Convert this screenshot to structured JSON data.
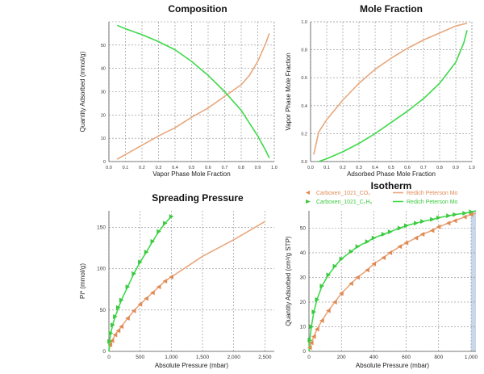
{
  "colors": {
    "orange": "#e8a77c",
    "green": "#3fd94a",
    "green_marker": "#3cc83f",
    "orange_marker": "#e08a55",
    "grid": "#8c8c8c",
    "highlight": "#c9d7ea"
  },
  "chart_data": [
    {
      "type": "line",
      "title": "Composition",
      "xlabel": "Vapor Phase Mole Fraction",
      "ylabel": "Quantity Adsorbed (mmol/g)",
      "xlim": [
        0,
        1
      ],
      "ylim": [
        0,
        60
      ],
      "x_ticks": [
        "0.0",
        "0.1",
        "0.2",
        "0.3",
        "0.4",
        "0.5",
        "0.6",
        "0.7",
        "0.8",
        "0.9",
        "1.0"
      ],
      "y_ticks": [
        "0",
        "10",
        "20",
        "30",
        "40",
        "50"
      ],
      "series": [
        {
          "color": "orange",
          "x": [
            0.05,
            0.1,
            0.2,
            0.3,
            0.4,
            0.5,
            0.6,
            0.7,
            0.8,
            0.85,
            0.9,
            0.95,
            0.97
          ],
          "y": [
            1,
            3,
            7,
            11,
            14.5,
            19,
            23,
            28,
            33,
            37,
            43,
            51,
            55
          ]
        },
        {
          "color": "green",
          "x": [
            0.05,
            0.1,
            0.2,
            0.3,
            0.4,
            0.5,
            0.6,
            0.7,
            0.8,
            0.9,
            0.95,
            0.97
          ],
          "y": [
            58.5,
            57,
            54.5,
            51.5,
            48,
            43,
            37,
            30,
            22,
            11,
            4.5,
            1.5
          ]
        }
      ]
    },
    {
      "type": "line",
      "title": "Mole Fraction",
      "xlabel": "Adsorbed Phase Mole Fraction",
      "ylabel": "Vapor Phase Mole Fraction",
      "xlim": [
        0,
        1
      ],
      "ylim": [
        0,
        1
      ],
      "x_ticks": [
        "0.0",
        "0.1",
        "0.2",
        "0.3",
        "0.4",
        "0.5",
        "0.6",
        "0.7",
        "0.8",
        "0.9",
        "1.0"
      ],
      "y_ticks": [
        "0.0",
        "0.2",
        "0.4",
        "0.6",
        "0.8",
        "1.0"
      ],
      "series": [
        {
          "color": "orange",
          "x": [
            0.02,
            0.05,
            0.1,
            0.2,
            0.3,
            0.4,
            0.5,
            0.6,
            0.7,
            0.8,
            0.9,
            0.97
          ],
          "y": [
            0.05,
            0.21,
            0.3,
            0.44,
            0.56,
            0.66,
            0.74,
            0.81,
            0.87,
            0.92,
            0.97,
            0.99
          ]
        },
        {
          "color": "green",
          "x": [
            0.05,
            0.1,
            0.2,
            0.3,
            0.4,
            0.5,
            0.6,
            0.7,
            0.8,
            0.9,
            0.95,
            0.97
          ],
          "y": [
            0.0,
            0.02,
            0.07,
            0.13,
            0.2,
            0.28,
            0.36,
            0.45,
            0.56,
            0.71,
            0.85,
            0.94
          ]
        }
      ]
    },
    {
      "type": "line",
      "title": "Spreading Pressure",
      "xlabel": "Absolute Pressure (mbar)",
      "ylabel": "Pi* (mmol/g)",
      "xlim": [
        0,
        2650
      ],
      "ylim": [
        0,
        170
      ],
      "x_ticks": [
        0,
        500,
        1000,
        1500,
        2000,
        2500
      ],
      "x_tick_labels": [
        "0",
        "500",
        "1,000",
        "1,500",
        "2,000",
        "2,500"
      ],
      "y_ticks": [
        0,
        50,
        100,
        150
      ],
      "series": [
        {
          "color": "orange",
          "x": [
            0,
            20,
            50,
            100,
            200,
            300,
            400,
            500,
            600,
            700,
            800,
            900,
            1000,
            1200,
            1500,
            2000,
            2500
          ],
          "y": [
            0,
            8,
            13,
            20,
            30,
            40,
            49,
            57,
            64,
            71,
            78,
            85,
            90,
            100,
            115,
            135,
            157
          ],
          "markers_x": [
            20,
            50,
            100,
            150,
            200,
            300,
            400,
            500,
            600,
            700,
            800,
            900,
            1000
          ],
          "markers_y": [
            8,
            13,
            20,
            25,
            30,
            40,
            49,
            57,
            64,
            71,
            78,
            85,
            90
          ]
        },
        {
          "color": "green",
          "x": [
            0,
            10,
            30,
            60,
            100,
            200,
            300,
            400,
            500,
            600,
            700,
            800,
            900,
            1000
          ],
          "y": [
            0,
            12,
            22,
            32,
            42,
            62,
            78,
            94,
            108,
            120,
            133,
            145,
            155,
            163
          ],
          "markers_x": [
            10,
            30,
            60,
            100,
            150,
            200,
            300,
            400,
            500,
            600,
            700,
            800,
            900,
            1000
          ],
          "markers_y": [
            12,
            22,
            32,
            42,
            53,
            62,
            78,
            94,
            108,
            120,
            133,
            145,
            155,
            163
          ]
        }
      ]
    },
    {
      "type": "line",
      "title": "Isotherm",
      "xlabel": "Absolute Pressure (mbar)",
      "ylabel": "Quantity Adsorbed (cm³/g STP)",
      "xlim": [
        0,
        1030
      ],
      "ylim": [
        0,
        57
      ],
      "x_ticks": [
        0,
        200,
        400,
        600,
        800,
        1000
      ],
      "x_tick_labels": [
        "0",
        "200",
        "400",
        "600",
        "800",
        "1,000"
      ],
      "y_ticks": [
        0,
        10,
        20,
        30,
        40,
        50
      ],
      "legend": [
        "Carboxen_1021_CO₂",
        "Redich Peterson Mo",
        "Carboxen_1021_C₂H₆",
        "Redich Peterson Mo"
      ],
      "series": [
        {
          "color": "orange",
          "x": [
            0,
            5,
            15,
            30,
            50,
            80,
            120,
            160,
            200,
            260,
            300,
            360,
            400,
            460,
            500,
            560,
            600,
            660,
            700,
            760,
            800,
            860,
            900,
            960,
            1000,
            1030
          ],
          "y": [
            0,
            1.5,
            3.5,
            6,
            9,
            12.5,
            16.5,
            20,
            23.5,
            27.5,
            30,
            33,
            35.5,
            38,
            40,
            42.5,
            44,
            46,
            47.5,
            49,
            50.5,
            52,
            53,
            54.5,
            55.5,
            56
          ]
        },
        {
          "color": "green",
          "x": [
            0,
            5,
            15,
            30,
            50,
            80,
            120,
            160,
            200,
            260,
            300,
            360,
            400,
            460,
            500,
            560,
            600,
            660,
            700,
            760,
            800,
            860,
            900,
            960,
            1000,
            1030
          ],
          "y": [
            0,
            4.5,
            10,
            16,
            21,
            26.5,
            31,
            34.5,
            37.5,
            40.5,
            42.5,
            44.5,
            46,
            47.5,
            48.5,
            50,
            51,
            52,
            52.7,
            53.5,
            54.2,
            55,
            55.5,
            56,
            56.6,
            57
          ]
        }
      ]
    }
  ]
}
